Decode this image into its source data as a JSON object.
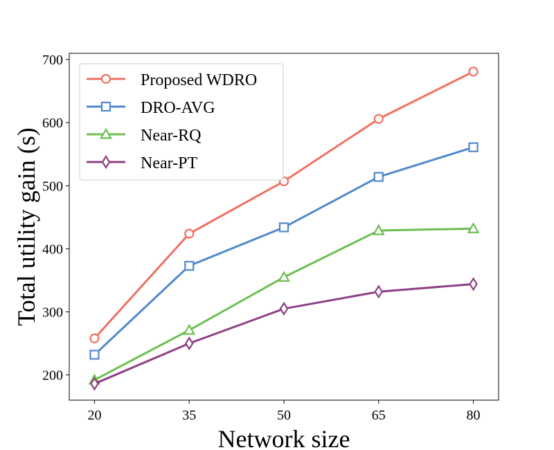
{
  "chart_data": {
    "type": "line",
    "title": "",
    "xlabel": "Network size",
    "ylabel": "Total utility gain (s)",
    "x": [
      20,
      35,
      50,
      65,
      80
    ],
    "x_tick_labels": [
      "20",
      "35",
      "50",
      "65",
      "80"
    ],
    "y_ticks": [
      200,
      300,
      400,
      500,
      600,
      700
    ],
    "y_tick_labels": [
      "200",
      "300",
      "400",
      "500",
      "600",
      "700"
    ],
    "ylim": [
      160,
      710
    ],
    "grid": false,
    "legend_position": "top-left",
    "series": [
      {
        "name": "Proposed WDRO",
        "marker": "circle",
        "color": "#f07060",
        "values": [
          258,
          424,
          507,
          606,
          681
        ]
      },
      {
        "name": "DRO-AVG",
        "marker": "square",
        "color": "#4f88cc",
        "values": [
          232,
          373,
          434,
          514,
          561
        ]
      },
      {
        "name": "Near-RQ",
        "marker": "triangle",
        "color": "#6cbf50",
        "values": [
          192,
          271,
          355,
          429,
          432
        ]
      },
      {
        "name": "Near-PT",
        "marker": "diamond",
        "color": "#8f3f85",
        "values": [
          186,
          250,
          305,
          332,
          344
        ]
      }
    ]
  }
}
